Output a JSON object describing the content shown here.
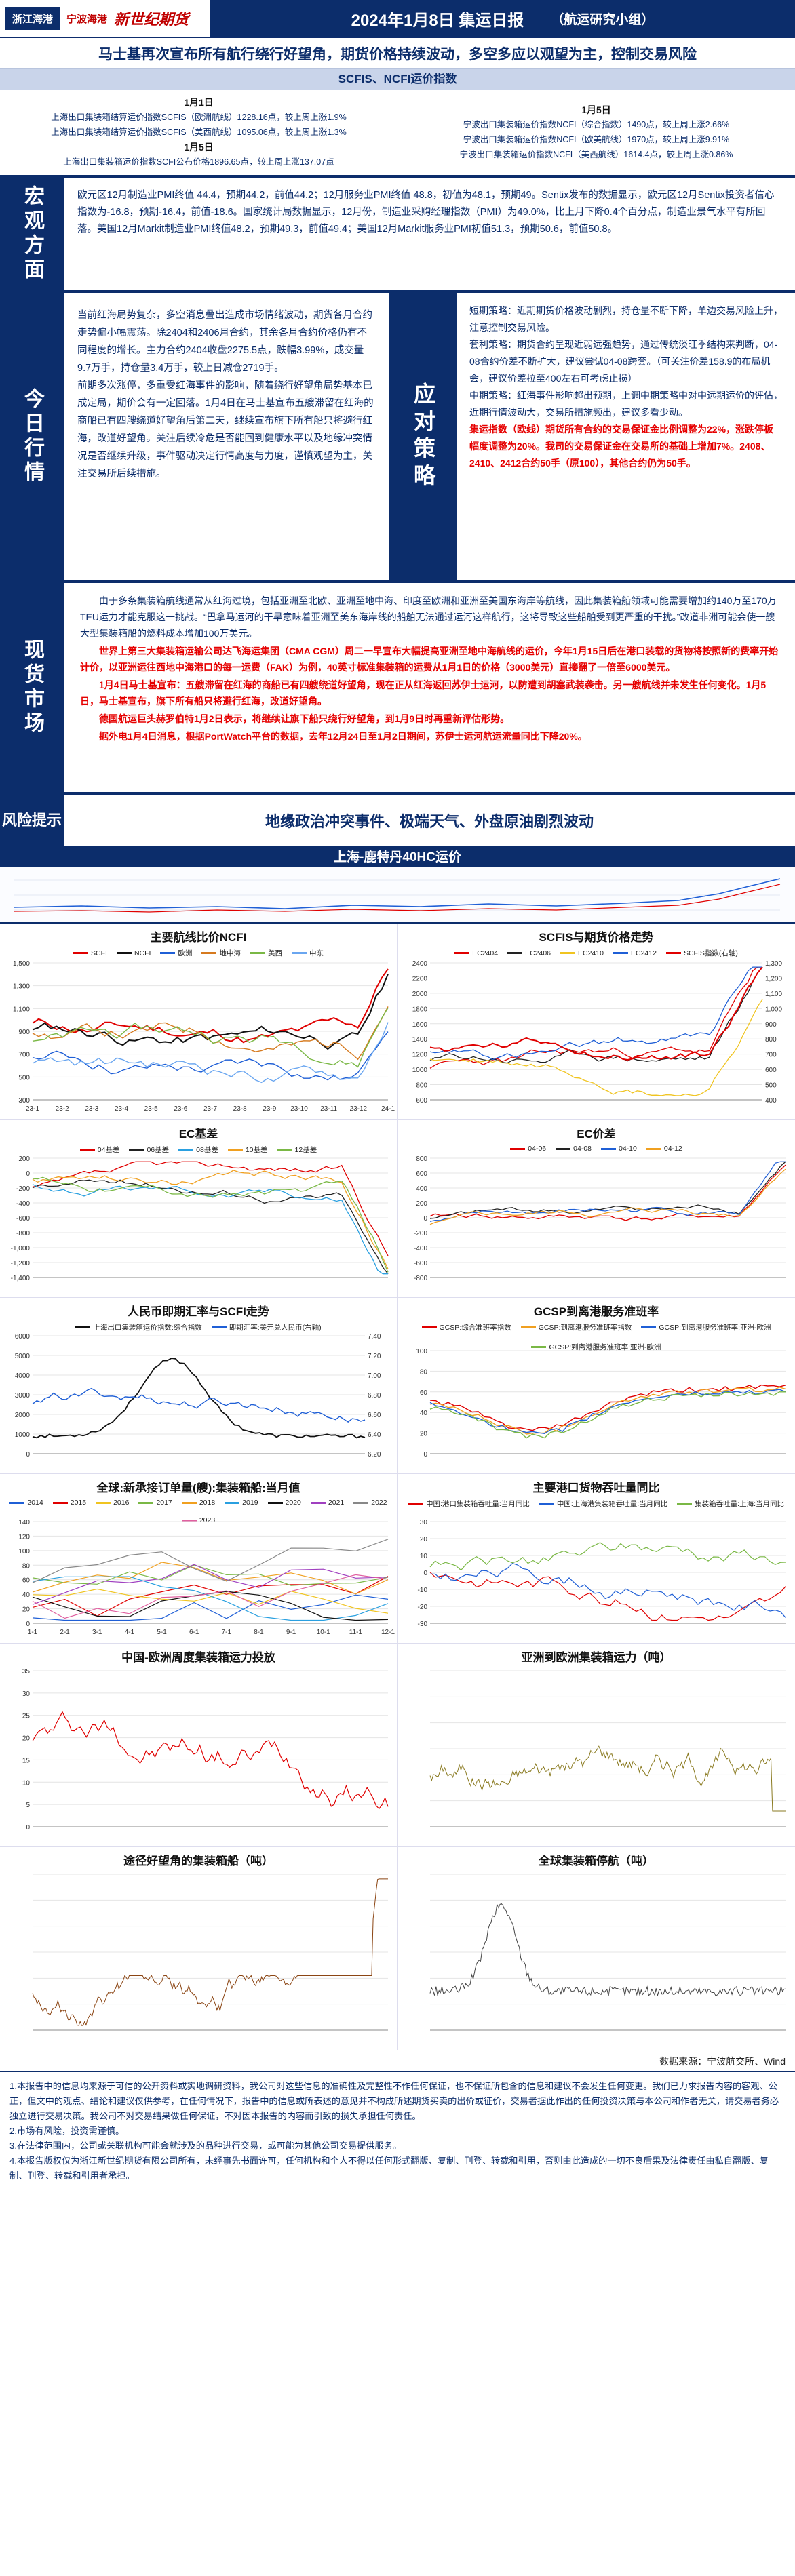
{
  "header": {
    "logo1": "浙江海港",
    "logo2": "宁波海港",
    "logo3": "新世纪期货",
    "title": "2024年1月8日 集运日报",
    "subtitle": "（航运研究小组）"
  },
  "headline": "马士基再次宣布所有航行绕行好望角，期货价格持续波动，多空多应以观望为主，控制交易风险",
  "scfis": {
    "section_title": "SCFIS、NCFI运价指数",
    "left": {
      "date1": "1月1日",
      "line1": "上海出口集装箱结算运价指数SCFIS（欧洲航线）1228.16点，较上周上涨1.9%",
      "line2": "上海出口集装箱结算运价指数SCFIS（美西航线）1095.06点，较上周上涨1.3%",
      "date2": "1月5日",
      "line3": "上海出口集装箱运价指数SCFI公布价格1896.65点，较上周上涨137.07点"
    },
    "right": {
      "date": "1月5日",
      "line1": "宁波出口集装箱运价指数NCFI（综合指数）1490点，较上周上涨2.66%",
      "line2": "宁波出口集装箱运价指数NCFI（欧美航线）1970点，较上周上涨9.91%",
      "line3": "宁波出口集装箱运价指数NCFI（美西航线）1614.4点，较上周上涨0.86%"
    }
  },
  "macro": {
    "label": "宏观方面",
    "text": "欧元区12月制造业PMI终值 44.4，预期44.2，前值44.2；12月服务业PMI终值 48.8，初值为48.1，预期49。Sentix发布的数据显示，欧元区12月Sentix投资者信心指数为-16.8，预期-16.4，前值-18.6。国家统计局数据显示，12月份，制造业采购经理指数（PMI）为49.0%，比上月下降0.4个百分点，制造业景气水平有所回落。美国12月Markit制造业PMI终值48.2，预期49.3，前值49.4；美国12月Markit服务业PMI初值51.3，预期50.6，前值50.8。"
  },
  "today": {
    "label": "今日行情",
    "left_p1": "当前红海局势复杂，多空消息叠出造成市场情绪波动，期货各月合约走势偏小幅震荡。除2404和2406月合约，其余各月合约价格仍有不同程度的增长。主力合约2404收盘2275.5点，跌幅3.99%，成交量9.7万手，持仓量3.4万手，较上日减仓2719手。",
    "left_p2": "前期多次涨停，多重受红海事件的影响，随着绕行好望角局势基本已成定局，期价会有一定回落。1月4日在马士基宣布五艘滞留在红海的商船已有四艘绕道好望角后第二天，继续宣布旗下所有船只将避行红海，改道好望角。关注后续冷危是否能回到健康水平以及地缘冲突情况是否继续升级，事件驱动决定行情高度与力度，谨慎观望为主，关注交易所后续措施。",
    "strategy_label": "应对策略",
    "right_p1": "短期策略：近期期货价格波动剧烈，持仓量不断下降，单边交易风险上升，注意控制交易风险。",
    "right_p2": "套利策略：期货合约呈现近弱远强趋势，通过传统淡旺季结构来判断，04-08合约价差不断扩大，建议尝试04-08跨套。（可关注价差158.9的布局机会，建议价差拉至400左右可考虑止损）",
    "right_p3": "中期策略：红海事件影响超出预期，上调中期策略中对中远期运价的评估，近期行情波动大，交易所措施频出，建议多看少动。",
    "right_red": "集运指数（欧线）期货所有合约的交易保证金比例调整为22%，涨跌停板幅度调整为20%。我司的交易保证金在交易所的基础上增加7%。2408、2410、2412合约50手（原100），其他合约仍为50手。"
  },
  "spot": {
    "label": "现货市场",
    "p1": "由于多条集装箱航线通常从红海过境，包括亚洲至北欧、亚洲至地中海、印度至欧洲和亚洲至美国东海岸等航线，因此集装箱船领域可能需要增加约140万至170万TEU运力才能克服这一挑战。“巴拿马运河的干旱意味着亚洲至美东海岸线的船舶无法通过运河这样航行，这将导致这些船舶受到更严重的干扰。”改道非洲可能会使一艘大型集装箱船的燃料成本增加100万美元。",
    "p2": "世界上第三大集装箱运输公司达飞海运集团（CMA CGM）周二一早宣布大幅提高亚洲至地中海航线的运价，今年1月15日后在港口装载的货物将按照新的费率开始计价，以亚洲运往西地中海港口的每一运费（FAK）为例，40英寸标准集装箱的运费从1月1日的价格（3000美元）直接翻了一倍至6000美元。",
    "p3": "1月4日马士基宣布：五艘滞留在红海的商船已有四艘绕道好望角，现在正从红海返回苏伊士运河，以防遭到胡塞武装袭击。另一艘航线并未发生任何变化。1月5日，马士基宣布，旗下所有船只将避行红海，改道好望角。",
    "p4": "德国航运巨头赫罗伯特1月2日表示，将继续让旗下船只绕行好望角，到1月9日时再重新评估形势。",
    "p5": "据外电1月4日消息，根据PortWatch平台的数据，去年12月24日至1月2日期间，苏伊士运河航运流量同比下降20%。"
  },
  "risk": {
    "label": "风险提示",
    "text": "地缘政治冲突事件、极端天气、外盘原油剧烈波动"
  },
  "route": {
    "title": "上海-鹿特丹40HC运价"
  },
  "charts": {
    "c1": {
      "title": "主要航线比价NCFI",
      "series": [
        "SCFI",
        "NCFI",
        "欧洲",
        "地中海",
        "美西",
        "中东"
      ],
      "colors": [
        "#e00000",
        "#111111",
        "#1f5fd6",
        "#d67a1f",
        "#7ab845",
        "#6aa6f0"
      ],
      "xticks": [
        "23-1",
        "23-2",
        "23-3",
        "23-4",
        "23-5",
        "23-6",
        "23-7",
        "23-8",
        "23-9",
        "23-10",
        "23-11",
        "23-12",
        "24-1"
      ],
      "yticks": [
        "300",
        "500",
        "700",
        "900",
        "1,100",
        "1,300",
        "1,500"
      ]
    },
    "c2": {
      "title": "SCFIS与期货价格走势",
      "series": [
        "EC2404",
        "EC2406",
        "EC2410",
        "EC2412",
        "SCFIS指数(右轴)"
      ],
      "colors": [
        "#e00000",
        "#222222",
        "#f0c420",
        "#1f5fd6",
        "#e00000"
      ]
    },
    "c3": {
      "title": "EC基差",
      "series": [
        "04基差",
        "06基差",
        "08基差",
        "10基差",
        "12基差"
      ],
      "colors": [
        "#e00000",
        "#222222",
        "#2aa0e0",
        "#f0a020",
        "#7ab845"
      ],
      "yticks": [
        "200",
        "0",
        "-200",
        "-400",
        "-600",
        "-800",
        "-1,000",
        "-1,200",
        "-1,400"
      ]
    },
    "c4": {
      "title": "EC价差",
      "series": [
        "04-06",
        "04-08",
        "04-10",
        "04-12"
      ],
      "colors": [
        "#e00000",
        "#222222",
        "#1f5fd6",
        "#f0a020"
      ],
      "yticks": [
        "800",
        "600",
        "400",
        "200",
        "0",
        "-200",
        "-400",
        "-600",
        "-800"
      ]
    },
    "c5": {
      "title": "人民币即期汇率与SCFI走势",
      "series": [
        "上海出口集装箱运价指数:综合指数",
        "即期汇率:美元兑人民币(右轴)"
      ],
      "colors": [
        "#111111",
        "#1f5fd6"
      ],
      "yticks": [
        "6000",
        "5000",
        "4000",
        "3000",
        "2000",
        "1000",
        "0"
      ],
      "y2ticks": [
        "7.40",
        "7.20",
        "7.00",
        "6.80",
        "6.60",
        "6.40",
        "6.20"
      ]
    },
    "c6": {
      "title": "GCSP到离港服务准班率",
      "series": [
        "GCSP:综合准班率指数",
        "GCSP:到离港服务准班率指数",
        "GCSP:到离港服务准班率:亚洲-欧洲",
        "GCSP:到离港服务准班率:亚洲-欧洲"
      ],
      "colors": [
        "#e00000",
        "#f0a020",
        "#1f5fd6",
        "#7ab845"
      ]
    },
    "c7": {
      "title": "全球:新承接订单量(艘):集装箱船:当月值",
      "series": [
        "2014",
        "2015",
        "2016",
        "2017",
        "2018",
        "2019",
        "2020",
        "2021",
        "2022",
        "2023"
      ],
      "colors": [
        "#1f5fd6",
        "#e00000",
        "#f0c420",
        "#7ab845",
        "#f0a020",
        "#2aa0e0",
        "#111111",
        "#a040c0",
        "#888888",
        "#e060a0"
      ],
      "xticks": [
        "1-1",
        "2-1",
        "3-1",
        "4-1",
        "5-1",
        "6-1",
        "7-1",
        "8-1",
        "9-1",
        "10-1",
        "11-1",
        "12-1"
      ]
    },
    "c8": {
      "title": "主要港口货物吞吐量同比",
      "series": [
        "中国:港口集装箱吞吐量:当月同比",
        "中国:上海港集装箱吞吐量:当月同比",
        "集装箱吞吐量:上海:当月同比"
      ],
      "colors": [
        "#e00000",
        "#1f5fd6",
        "#7ab845"
      ]
    },
    "c9": {
      "title": "中国-欧洲周度集装箱运力投放",
      "colors": [
        "#e00000"
      ]
    },
    "c10": {
      "title": "亚洲到欧洲集装箱运力（吨）",
      "colors": [
        "#8a7a20"
      ]
    },
    "c11": {
      "title": "途径好望角的集装箱船（吨）",
      "colors": [
        "#8b4513"
      ]
    },
    "c12": {
      "title": "全球集装箱停航（吨）",
      "colors": [
        "#444444"
      ]
    }
  },
  "source": "数据来源：宁波航交所、Wind",
  "disclaimer": [
    "1.本报告中的信息均来源于可信的公开资料或实地调研资料，我公司对这些信息的准确性及完整性不作任何保证，也不保证所包含的信息和建议不会发生任何变更。我们已力求报告内容的客观、公正，但文中的观点、结论和建议仅供参考，在任何情况下，报告中的信息或所表述的意见并不构成所述期货买卖的出价或征价，交易者据此作出的任何投资决策与本公司和作者无关，请交易者务必独立进行交易决策。我公司不对交易结果做任何保证，不对因本报告的内容而引致的损失承担任何责任。",
    "2.市场有风险，投资需谨慎。",
    "3.在法律范围内，公司或关联机构可能会就涉及的品种进行交易，或可能为其他公司交易提供服务。",
    "4.本报告版权仅为浙江新世纪期货有限公司所有，未经事先书面许可，任何机构和个人不得以任何形式翻版、复制、刊登、转载和引用，否则由此造成的一切不良后果及法律责任由私自翻版、复制、刊登、转载和引用者承担。"
  ]
}
